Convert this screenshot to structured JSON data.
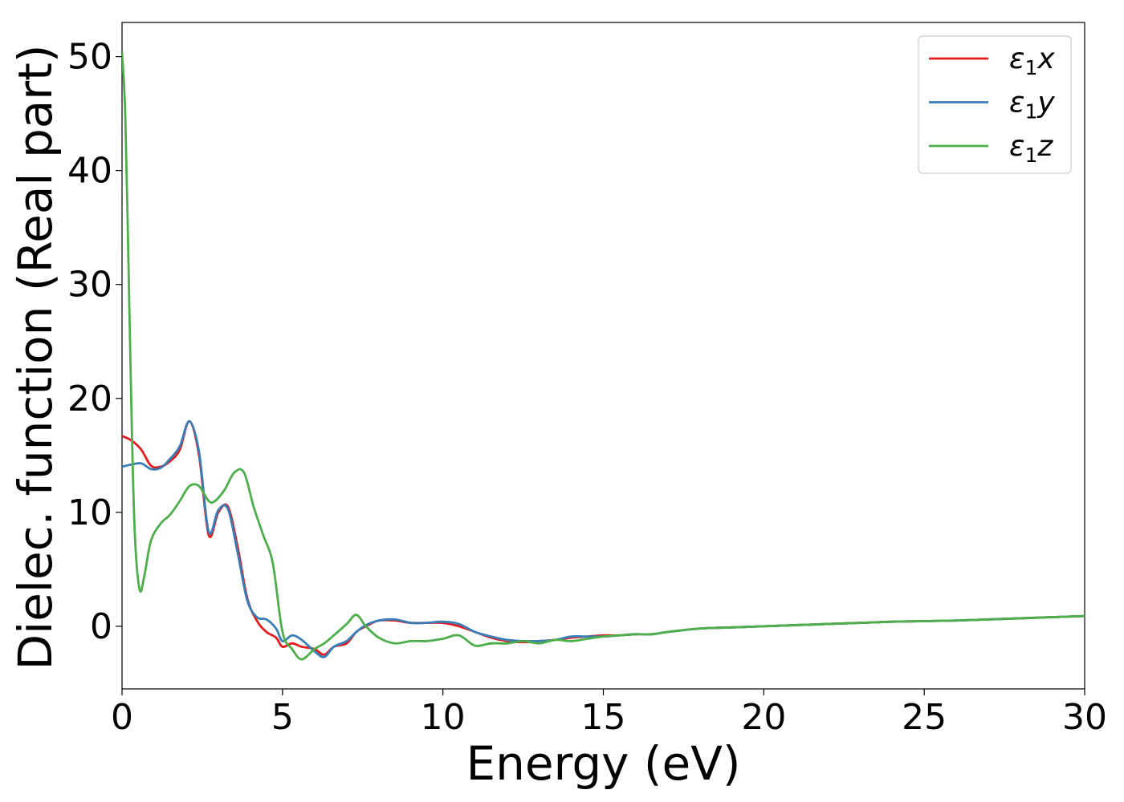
{
  "chart_data": {
    "type": "line",
    "title": "",
    "xlabel": "Energy (eV)",
    "ylabel": "Dielec. function (Real part)",
    "xlim": [
      0,
      30
    ],
    "ylim": [
      -5.5,
      53
    ],
    "xticks": [
      0,
      5,
      10,
      15,
      20,
      25,
      30
    ],
    "yticks": [
      0,
      10,
      20,
      30,
      40,
      50
    ],
    "grid": false,
    "legend_position": "top-right",
    "series": [
      {
        "name": "ε1x",
        "legend": {
          "symbol": "ε",
          "sub": "1",
          "suffix": "x"
        },
        "color": "#e41a1c",
        "x": [
          0,
          0.3,
          0.6,
          0.9,
          1.2,
          1.5,
          1.8,
          2.1,
          2.4,
          2.7,
          3.0,
          3.3,
          3.6,
          3.9,
          4.2,
          4.5,
          4.8,
          5.0,
          5.3,
          5.6,
          6.0,
          6.3,
          6.6,
          7.0,
          7.3,
          7.6,
          8.0,
          8.5,
          9.0,
          9.5,
          10.0,
          10.5,
          11.0,
          11.5,
          12.0,
          12.5,
          13.0,
          13.5,
          14.0,
          14.5,
          15.0,
          15.5,
          16.0,
          16.5,
          17.0,
          18.0,
          19.0,
          20.0,
          21.0,
          22.0,
          23.0,
          24.0,
          25.0,
          26.0,
          27.0,
          28.0,
          29.0,
          30.0
        ],
        "values": [
          16.7,
          16.3,
          15.5,
          14.1,
          14.0,
          14.5,
          15.5,
          18.0,
          15.0,
          8.0,
          10.0,
          10.5,
          7.0,
          2.5,
          0.5,
          -0.5,
          -1.0,
          -1.8,
          -1.5,
          -1.8,
          -2.0,
          -2.5,
          -1.8,
          -1.5,
          -0.5,
          0.0,
          0.5,
          0.5,
          0.3,
          0.3,
          0.3,
          0.0,
          -0.5,
          -1.0,
          -1.3,
          -1.4,
          -1.3,
          -1.2,
          -1.0,
          -0.9,
          -0.8,
          -0.8,
          -0.7,
          -0.7,
          -0.5,
          -0.2,
          -0.1,
          0.0,
          0.1,
          0.2,
          0.3,
          0.4,
          0.45,
          0.5,
          0.6,
          0.7,
          0.8,
          0.9
        ]
      },
      {
        "name": "ε1y",
        "legend": {
          "symbol": "ε",
          "sub": "1",
          "suffix": "y"
        },
        "color": "#377eb8",
        "x": [
          0,
          0.3,
          0.6,
          0.9,
          1.2,
          1.5,
          1.8,
          2.1,
          2.4,
          2.7,
          3.0,
          3.3,
          3.6,
          3.9,
          4.2,
          4.5,
          4.8,
          5.0,
          5.3,
          5.6,
          6.0,
          6.3,
          6.6,
          7.0,
          7.3,
          7.6,
          8.0,
          8.5,
          9.0,
          9.5,
          10.0,
          10.5,
          11.0,
          11.5,
          12.0,
          12.5,
          13.0,
          13.5,
          14.0,
          14.5,
          15.0,
          15.5,
          16.0,
          16.5,
          17.0,
          18.0,
          19.0,
          20.0,
          21.0,
          22.0,
          23.0,
          24.0,
          25.0,
          26.0,
          27.0,
          28.0,
          29.0,
          30.0
        ],
        "values": [
          14.0,
          14.2,
          14.3,
          13.8,
          13.9,
          14.7,
          15.8,
          18.0,
          15.3,
          8.3,
          10.2,
          10.3,
          6.5,
          2.3,
          0.8,
          0.6,
          -0.2,
          -1.3,
          -0.8,
          -1.2,
          -2.2,
          -2.7,
          -1.8,
          -1.3,
          -0.5,
          0.1,
          0.5,
          0.6,
          0.3,
          0.3,
          0.4,
          0.2,
          -0.5,
          -0.9,
          -1.2,
          -1.3,
          -1.3,
          -1.2,
          -0.9,
          -0.9,
          -0.9,
          -0.8,
          -0.7,
          -0.7,
          -0.5,
          -0.2,
          -0.1,
          0.0,
          0.1,
          0.2,
          0.3,
          0.4,
          0.45,
          0.5,
          0.6,
          0.7,
          0.8,
          0.9
        ]
      },
      {
        "name": "ε1z",
        "legend": {
          "symbol": "ε",
          "sub": "1",
          "suffix": "z"
        },
        "color": "#4daf4a",
        "x": [
          0,
          0.1,
          0.2,
          0.3,
          0.4,
          0.55,
          0.7,
          0.9,
          1.2,
          1.5,
          1.8,
          2.1,
          2.4,
          2.7,
          2.9,
          3.2,
          3.5,
          3.8,
          4.1,
          4.4,
          4.7,
          5.0,
          5.3,
          5.6,
          6.0,
          6.3,
          6.6,
          7.0,
          7.3,
          7.6,
          8.0,
          8.5,
          9.0,
          9.5,
          10.0,
          10.5,
          11.0,
          11.5,
          12.0,
          12.5,
          13.0,
          13.5,
          14.0,
          14.5,
          15.0,
          15.5,
          16.0,
          16.5,
          17.0,
          18.0,
          19.0,
          20.0,
          21.0,
          22.0,
          23.0,
          24.0,
          25.0,
          26.0,
          27.0,
          28.0,
          29.0,
          30.0
        ],
        "values": [
          50.4,
          45.0,
          32.0,
          18.0,
          8.0,
          3.2,
          4.5,
          7.5,
          9.0,
          9.8,
          11.0,
          12.3,
          12.3,
          11.0,
          11.0,
          12.0,
          13.5,
          13.5,
          10.5,
          8.0,
          5.5,
          -0.5,
          -2.0,
          -2.9,
          -2.0,
          -1.5,
          -0.8,
          0.2,
          1.0,
          0.0,
          -1.0,
          -1.5,
          -1.3,
          -1.3,
          -1.1,
          -0.8,
          -1.7,
          -1.5,
          -1.5,
          -1.3,
          -1.5,
          -1.2,
          -1.3,
          -1.1,
          -0.9,
          -0.8,
          -0.7,
          -0.7,
          -0.5,
          -0.2,
          -0.1,
          0.0,
          0.1,
          0.2,
          0.3,
          0.4,
          0.45,
          0.5,
          0.6,
          0.7,
          0.8,
          0.9
        ]
      }
    ]
  }
}
